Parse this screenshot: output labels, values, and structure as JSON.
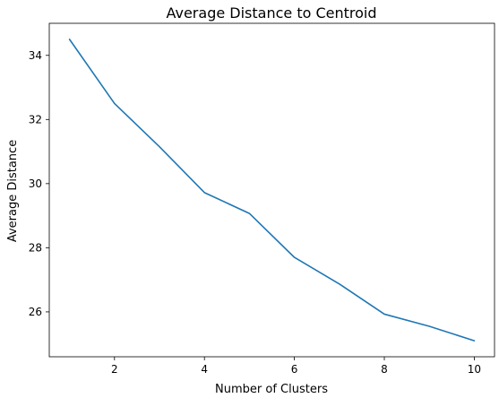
{
  "chart_data": {
    "type": "line",
    "title": "Average Distance to Centroid",
    "xlabel": "Number of Clusters",
    "ylabel": "Average Distance",
    "xlim": [
      0.55,
      10.45
    ],
    "ylim": [
      24.6,
      35.0
    ],
    "xticks": [
      2,
      4,
      6,
      8,
      10
    ],
    "yticks": [
      26,
      28,
      30,
      32,
      34
    ],
    "grid": false,
    "color": "#1f77b4",
    "series": [
      {
        "x": [
          1,
          2,
          3,
          4,
          5,
          6,
          7,
          8,
          9,
          10
        ],
        "values": [
          34.5,
          32.5,
          31.15,
          29.72,
          29.07,
          27.7,
          26.87,
          25.93,
          25.55,
          25.1
        ]
      }
    ]
  }
}
